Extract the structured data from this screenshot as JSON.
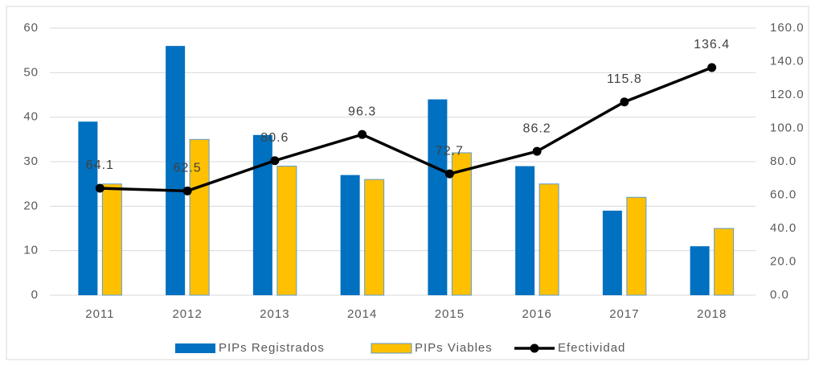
{
  "chart_data": {
    "type": "bar-line",
    "categories": [
      "2011",
      "2012",
      "2013",
      "2014",
      "2015",
      "2016",
      "2017",
      "2018"
    ],
    "series": [
      {
        "name": "PIPs Registrados",
        "type": "bar",
        "color": "#0070c0",
        "values": [
          39,
          56,
          36,
          27,
          44,
          29,
          19,
          11
        ]
      },
      {
        "name": "PIPs  Viables",
        "type": "bar",
        "color": "#ffc000",
        "values": [
          25,
          35,
          29,
          26,
          32,
          25,
          22,
          15
        ]
      },
      {
        "name": "Efectividad",
        "type": "line",
        "axis": "y2",
        "color": "#000000",
        "values": [
          64.1,
          62.5,
          80.6,
          96.3,
          72.7,
          86.2,
          115.8,
          136.4
        ]
      }
    ],
    "ylim": [
      0,
      60
    ],
    "yticks": [
      0,
      10,
      20,
      30,
      40,
      50,
      60
    ],
    "y2lim": [
      0,
      160
    ],
    "y2ticks": [
      {
        "value": 0,
        "label": "0.0"
      },
      {
        "value": 20,
        "label": "20.0"
      },
      {
        "value": 40,
        "label": "40.0"
      },
      {
        "value": 60,
        "label": "60.0"
      },
      {
        "value": 80,
        "label": "80.0"
      },
      {
        "value": 100,
        "label": "100.0"
      },
      {
        "value": 120,
        "label": "120.0"
      },
      {
        "value": 140,
        "label": "140.0"
      },
      {
        "value": 160,
        "label": "160.0"
      }
    ],
    "grid": true,
    "legend": "bottom"
  }
}
